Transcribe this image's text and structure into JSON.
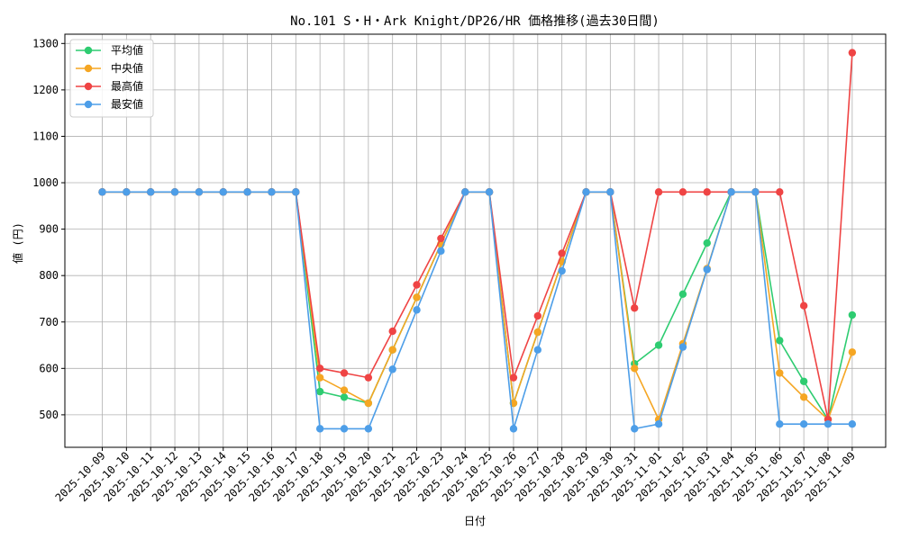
{
  "chart_data": {
    "type": "line",
    "title": "No.101 S・H・Ark Knight/DP26/HR 価格推移(過去30日間)",
    "xlabel": "日付",
    "ylabel": "値 (円)",
    "ylim": [
      430,
      1320
    ],
    "yticks": [
      500,
      600,
      700,
      800,
      900,
      1000,
      1100,
      1200,
      1300
    ],
    "grid": true,
    "legend_position": "top-left",
    "categories": [
      "2025-10-09",
      "2025-10-10",
      "2025-10-11",
      "2025-10-12",
      "2025-10-13",
      "2025-10-14",
      "2025-10-15",
      "2025-10-16",
      "2025-10-17",
      "2025-10-18",
      "2025-10-19",
      "2025-10-20",
      "2025-10-21",
      "2025-10-22",
      "2025-10-23",
      "2025-10-24",
      "2025-10-25",
      "2025-10-26",
      "2025-10-27",
      "2025-10-28",
      "2025-10-29",
      "2025-10-30",
      "2025-10-31",
      "2025-11-01",
      "2025-11-02",
      "2025-11-03",
      "2025-11-04",
      "2025-11-05",
      "2025-11-06",
      "2025-11-07",
      "2025-11-08",
      "2025-11-09"
    ],
    "series": [
      {
        "name": "平均値",
        "color": "#2ecc71",
        "values": [
          980,
          980,
          980,
          980,
          980,
          980,
          980,
          980,
          980,
          550,
          538,
          525,
          640,
          753,
          868,
          980,
          980,
          525,
          678,
          830,
          980,
          980,
          610,
          650,
          760,
          870,
          980,
          980,
          660,
          572,
          490,
          715
        ]
      },
      {
        "name": "中央値",
        "color": "#f5a623",
        "values": [
          980,
          980,
          980,
          980,
          980,
          980,
          980,
          980,
          980,
          580,
          553,
          525,
          640,
          753,
          868,
          980,
          980,
          525,
          678,
          830,
          980,
          980,
          600,
          490,
          653,
          815,
          980,
          980,
          590,
          538,
          490,
          635
        ]
      },
      {
        "name": "最高値",
        "color": "#ef4444",
        "values": [
          980,
          980,
          980,
          980,
          980,
          980,
          980,
          980,
          980,
          600,
          590,
          580,
          680,
          780,
          880,
          980,
          980,
          580,
          713,
          848,
          980,
          980,
          730,
          980,
          980,
          980,
          980,
          980,
          980,
          735,
          490,
          1280
        ]
      },
      {
        "name": "最安値",
        "color": "#4d9ee8",
        "values": [
          980,
          980,
          980,
          980,
          980,
          980,
          980,
          980,
          980,
          470,
          470,
          470,
          598,
          726,
          853,
          980,
          980,
          470,
          640,
          810,
          980,
          980,
          470,
          480,
          646,
          813,
          980,
          980,
          480,
          480,
          480,
          480
        ]
      }
    ]
  }
}
